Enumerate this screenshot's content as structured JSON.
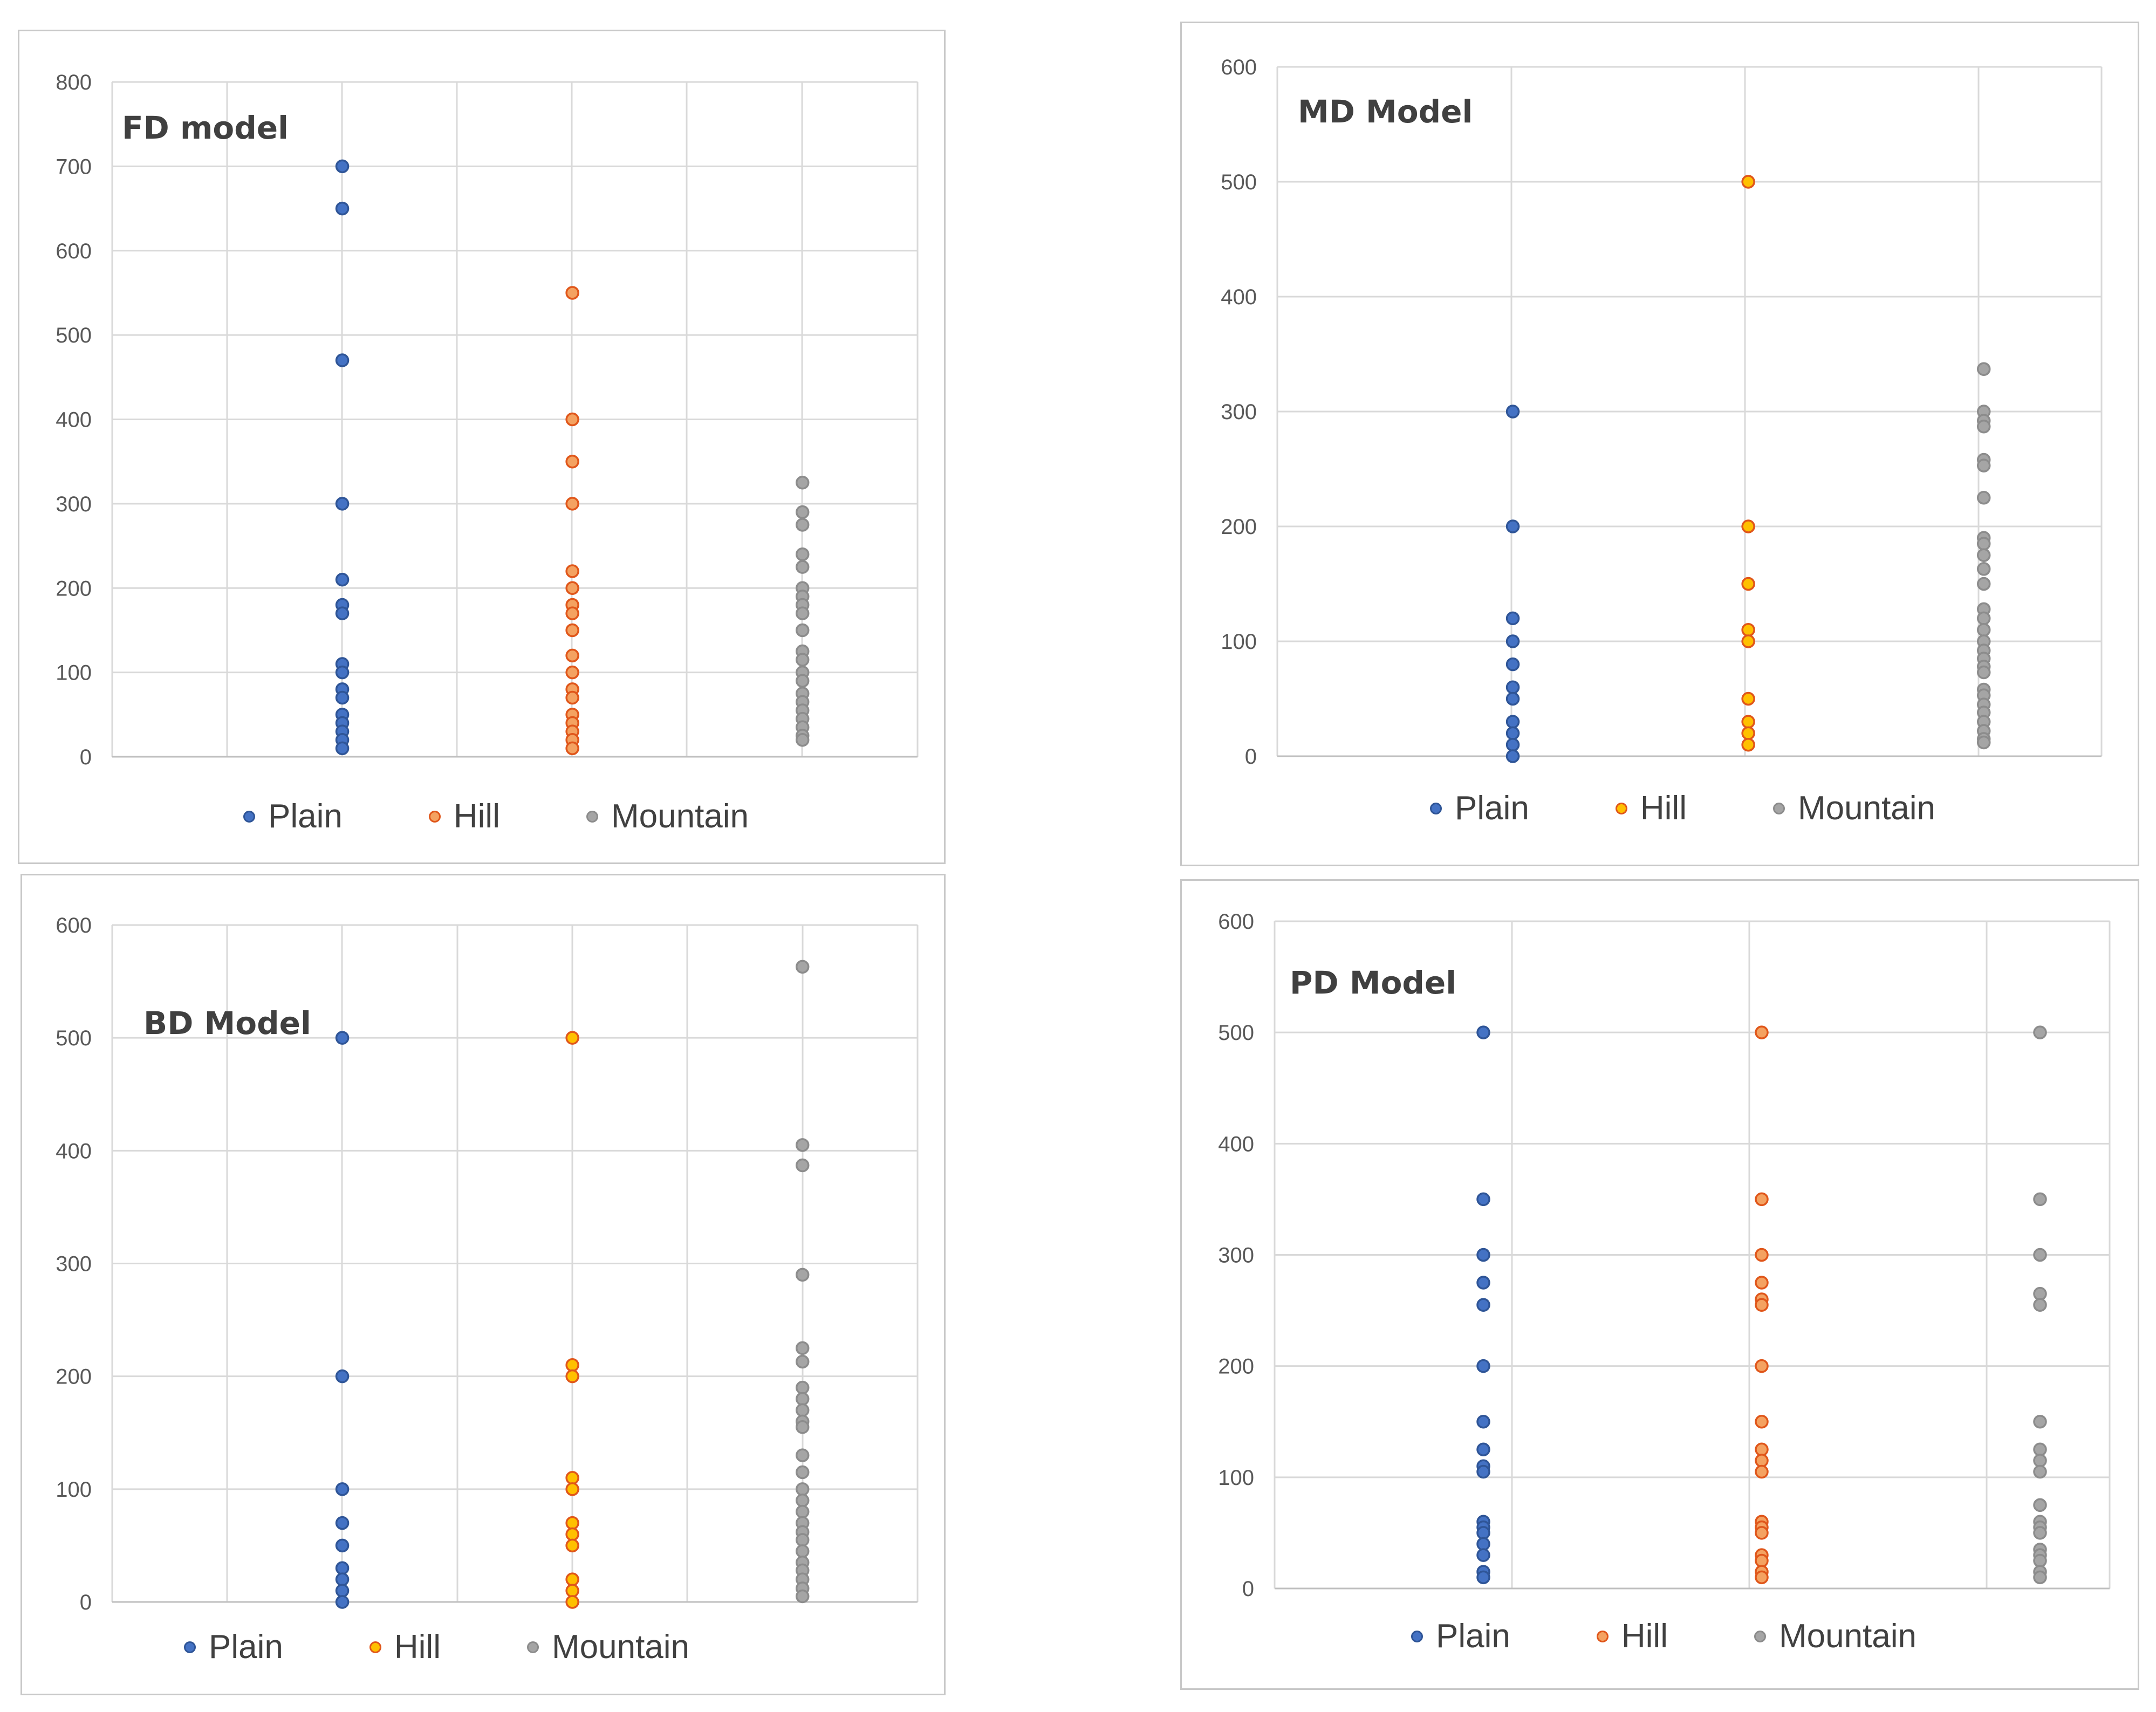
{
  "colors": {
    "grid": "#d9d9d9",
    "tick_text": "#595959",
    "title_text": "#404040",
    "plain_fill": "#4472c4",
    "plain_edge": "#2f5597",
    "hill_orange_fill": "#f4a261",
    "hill_orange_edge": "#e0561a",
    "hill_yellow_fill": "#ffc000",
    "hill_yellow_edge": "#e0561a",
    "mountain_fill": "#a5a5a5",
    "mountain_edge": "#8c8c8c"
  },
  "chart_data": [
    {
      "type": "scatter",
      "title": "FD model",
      "xlabel": "",
      "ylabel": "",
      "xlim": [
        0,
        7
      ],
      "ylim": [
        0,
        800
      ],
      "ytick_step": 100,
      "yticks": [
        "0",
        "100",
        "200",
        "300",
        "400",
        "500",
        "600",
        "700",
        "800"
      ],
      "grid": true,
      "legend_position": "bottom",
      "series": [
        {
          "name": "Plain",
          "x": 2,
          "fill_key": "plain_fill",
          "edge_key": "plain_edge",
          "values": [
            700,
            650,
            470,
            300,
            210,
            180,
            170,
            110,
            100,
            80,
            70,
            50,
            40,
            30,
            20,
            10
          ]
        },
        {
          "name": "Hill",
          "x": 4,
          "fill_key": "hill_orange_fill",
          "edge_key": "hill_orange_edge",
          "values": [
            550,
            400,
            350,
            300,
            220,
            200,
            180,
            170,
            150,
            120,
            100,
            80,
            70,
            50,
            40,
            30,
            20,
            10
          ]
        },
        {
          "name": "Mountain",
          "x": 6,
          "fill_key": "mountain_fill",
          "edge_key": "mountain_edge",
          "values": [
            325,
            290,
            275,
            240,
            225,
            200,
            190,
            180,
            170,
            150,
            125,
            115,
            100,
            90,
            75,
            65,
            55,
            45,
            35,
            25,
            20
          ]
        }
      ]
    },
    {
      "type": "scatter",
      "title": "MD Model",
      "xlabel": "",
      "ylabel": "",
      "xlim": [
        0,
        7
      ],
      "ylim": [
        0,
        600
      ],
      "ytick_step": 100,
      "yticks": [
        "0",
        "100",
        "200",
        "300",
        "400",
        "500",
        "600"
      ],
      "grid": true,
      "legend_position": "bottom",
      "series": [
        {
          "name": "Plain",
          "x": 2,
          "fill_key": "plain_fill",
          "edge_key": "plain_edge",
          "values": [
            300,
            200,
            120,
            100,
            80,
            60,
            50,
            30,
            20,
            10,
            0
          ]
        },
        {
          "name": "Hill",
          "x": 4,
          "fill_key": "hill_yellow_fill",
          "edge_key": "hill_yellow_edge",
          "values": [
            500,
            200,
            150,
            110,
            100,
            50,
            30,
            20,
            10
          ]
        },
        {
          "name": "Mountain",
          "x": 6,
          "fill_key": "mountain_fill",
          "edge_key": "mountain_edge",
          "values": [
            337,
            300,
            292,
            287,
            258,
            253,
            225,
            190,
            185,
            175,
            163,
            150,
            128,
            120,
            110,
            100,
            92,
            85,
            78,
            73,
            58,
            53,
            45,
            38,
            30,
            22,
            15,
            12
          ]
        }
      ]
    },
    {
      "type": "scatter",
      "title": "BD Model",
      "xlabel": "",
      "ylabel": "",
      "xlim": [
        0,
        7
      ],
      "ylim": [
        0,
        600
      ],
      "ytick_step": 100,
      "yticks": [
        "0",
        "100",
        "200",
        "300",
        "400",
        "500",
        "600"
      ],
      "grid": true,
      "legend_position": "bottom",
      "series": [
        {
          "name": "Plain",
          "x": 2,
          "fill_key": "plain_fill",
          "edge_key": "plain_edge",
          "values": [
            500,
            200,
            100,
            70,
            50,
            30,
            20,
            10,
            0
          ]
        },
        {
          "name": "Hill",
          "x": 4,
          "fill_key": "hill_yellow_fill",
          "edge_key": "hill_yellow_edge",
          "values": [
            500,
            210,
            200,
            110,
            100,
            70,
            60,
            50,
            20,
            10,
            0
          ]
        },
        {
          "name": "Mountain",
          "x": 6,
          "fill_key": "mountain_fill",
          "edge_key": "mountain_edge",
          "values": [
            563,
            405,
            387,
            290,
            225,
            213,
            190,
            180,
            170,
            160,
            155,
            130,
            115,
            100,
            90,
            80,
            70,
            62,
            55,
            45,
            35,
            28,
            20,
            12,
            5
          ]
        }
      ]
    },
    {
      "type": "scatter",
      "title": "PD Model",
      "xlabel": "",
      "ylabel": "",
      "xlim": [
        0,
        6
      ],
      "ylim": [
        0,
        600
      ],
      "ytick_step": 100,
      "yticks": [
        "0",
        "100",
        "200",
        "300",
        "400",
        "500",
        "600"
      ],
      "grid": true,
      "legend_position": "bottom",
      "series": [
        {
          "name": "Plain",
          "x": 1.5,
          "fill_key": "plain_fill",
          "edge_key": "plain_edge",
          "values": [
            500,
            350,
            300,
            275,
            255,
            200,
            150,
            125,
            110,
            105,
            60,
            55,
            50,
            40,
            30,
            15,
            10
          ]
        },
        {
          "name": "Hill",
          "x": 3.5,
          "fill_key": "hill_orange_fill",
          "edge_key": "hill_orange_edge",
          "values": [
            500,
            350,
            300,
            275,
            260,
            255,
            200,
            150,
            125,
            115,
            105,
            60,
            55,
            50,
            30,
            25,
            15,
            10
          ]
        },
        {
          "name": "Mountain",
          "x": 5.5,
          "fill_key": "mountain_fill",
          "edge_key": "mountain_edge",
          "values": [
            500,
            350,
            300,
            265,
            255,
            150,
            125,
            115,
            105,
            75,
            60,
            55,
            50,
            35,
            30,
            25,
            15,
            10
          ]
        }
      ]
    }
  ]
}
